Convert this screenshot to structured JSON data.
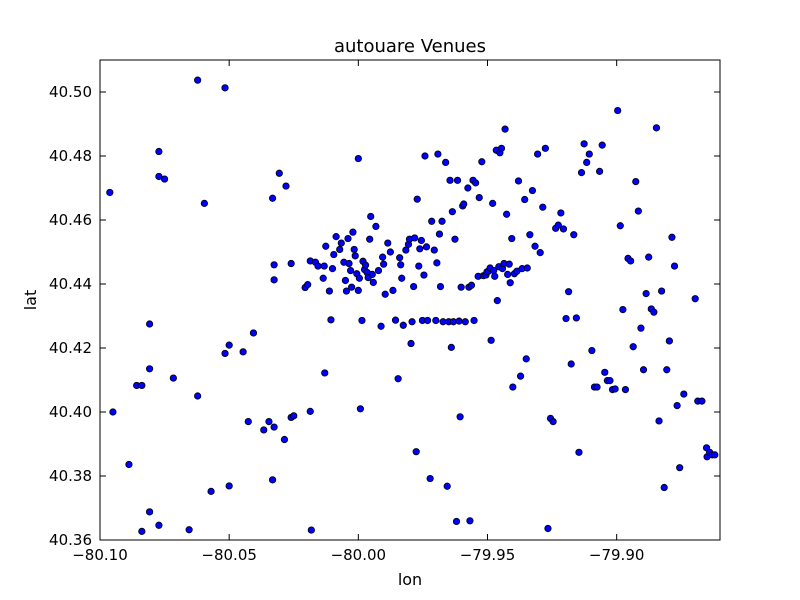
{
  "chart_data": {
    "type": "scatter",
    "title": "autouare Venues",
    "xlabel": "lon",
    "ylabel": "lat",
    "xlim": [
      -80.1,
      -79.86
    ],
    "ylim": [
      40.36,
      40.51
    ],
    "xticks": [
      -80.1,
      -80.05,
      -80.0,
      -79.95,
      -79.9
    ],
    "xtick_labels": [
      "−80.10",
      "−80.05",
      "−80.00",
      "−79.95",
      "−79.90"
    ],
    "yticks": [
      40.36,
      40.38,
      40.4,
      40.42,
      40.44,
      40.46,
      40.48,
      40.5
    ],
    "ytick_labels": [
      "40.36",
      "40.38",
      "40.40",
      "40.42",
      "40.44",
      "40.46",
      "40.48",
      "40.50"
    ],
    "grid": false,
    "marker_color": "#0000ff",
    "marker_edge": "#000000",
    "series": [
      {
        "points": [
          [
            -80.0962,
            40.4686
          ],
          [
            -80.095,
            40.4
          ],
          [
            -80.0888,
            40.3836
          ],
          [
            -80.0858,
            40.4083
          ],
          [
            -80.0838,
            40.4083
          ],
          [
            -80.0838,
            40.3627
          ],
          [
            -80.0808,
            40.4275
          ],
          [
            -80.0808,
            40.4135
          ],
          [
            -80.0808,
            40.3688
          ],
          [
            -80.0772,
            40.4814
          ],
          [
            -80.0772,
            40.4736
          ],
          [
            -80.075,
            40.4728
          ],
          [
            -80.0772,
            40.3646
          ],
          [
            -80.0716,
            40.4106
          ],
          [
            -80.0655,
            40.3632
          ],
          [
            -80.0622,
            40.5037
          ],
          [
            -80.0622,
            40.405
          ],
          [
            -80.0596,
            40.4652
          ],
          [
            -80.057,
            40.3752
          ],
          [
            -80.0516,
            40.5013
          ],
          [
            -80.0516,
            40.4183
          ],
          [
            -80.05,
            40.4209
          ],
          [
            -80.05,
            40.3769
          ],
          [
            -80.0446,
            40.4188
          ],
          [
            -80.0426,
            40.397
          ],
          [
            -80.0406,
            40.4247
          ],
          [
            -80.0366,
            40.3944
          ],
          [
            -80.0346,
            40.397
          ],
          [
            -80.0332,
            40.4668
          ],
          [
            -80.0332,
            40.3788
          ],
          [
            -80.0326,
            40.3953
          ],
          [
            -80.0326,
            40.446
          ],
          [
            -80.0326,
            40.4413
          ],
          [
            -80.0306,
            40.4746
          ],
          [
            -80.0286,
            40.3914
          ],
          [
            -80.028,
            40.4706
          ],
          [
            -80.026,
            40.4464
          ],
          [
            -80.026,
            40.3983
          ],
          [
            -80.025,
            40.3988
          ],
          [
            -80.0206,
            40.4389
          ],
          [
            -80.0196,
            40.4398
          ],
          [
            -80.0186,
            40.4472
          ],
          [
            -80.0186,
            40.4002
          ],
          [
            -80.0182,
            40.3631
          ],
          [
            -80.0166,
            40.4468
          ],
          [
            -80.0156,
            40.4456
          ],
          [
            -80.0136,
            40.4418
          ],
          [
            -80.0132,
            40.4456
          ],
          [
            -80.013,
            40.4122
          ],
          [
            -80.0126,
            40.4518
          ],
          [
            -80.0112,
            40.4378
          ],
          [
            -80.0106,
            40.4288
          ],
          [
            -80.01,
            40.4448
          ],
          [
            -80.0095,
            40.4492
          ],
          [
            -80.0086,
            40.4548
          ],
          [
            -80.0072,
            40.4508
          ],
          [
            -80.0066,
            40.4528
          ],
          [
            -80.0056,
            40.4468
          ],
          [
            -80.005,
            40.4411
          ],
          [
            -80.0046,
            40.4378
          ],
          [
            -80.004,
            40.4542
          ],
          [
            -80.0036,
            40.4464
          ],
          [
            -80.003,
            40.4442
          ],
          [
            -80.0026,
            40.439
          ],
          [
            -80.0021,
            40.4562
          ],
          [
            -80.0016,
            40.4508
          ],
          [
            -80.0012,
            40.4488
          ],
          [
            -80.0006,
            40.4432
          ],
          [
            -80.0,
            40.4792
          ],
          [
            -80.0,
            40.438
          ],
          [
            -79.9996,
            40.4418
          ],
          [
            -79.9992,
            40.401
          ],
          [
            -79.9986,
            40.4286
          ],
          [
            -79.9982,
            40.4471
          ],
          [
            -79.9976,
            40.4445
          ],
          [
            -79.9972,
            40.4459
          ],
          [
            -79.9966,
            40.4436
          ],
          [
            -79.9962,
            40.442
          ],
          [
            -79.9956,
            40.454
          ],
          [
            -79.9952,
            40.4611
          ],
          [
            -79.9946,
            40.443
          ],
          [
            -79.9942,
            40.4405
          ],
          [
            -79.9932,
            40.458
          ],
          [
            -79.9922,
            40.4442
          ],
          [
            -79.9912,
            40.4268
          ],
          [
            -79.9906,
            40.4484
          ],
          [
            -79.9902,
            40.4462
          ],
          [
            -79.9896,
            40.4368
          ],
          [
            -79.9886,
            40.4528
          ],
          [
            -79.9876,
            40.45
          ],
          [
            -79.9866,
            40.438
          ],
          [
            -79.9856,
            40.4287
          ],
          [
            -79.9846,
            40.4104
          ],
          [
            -79.984,
            40.4482
          ],
          [
            -79.9836,
            40.446
          ],
          [
            -79.9832,
            40.4418
          ],
          [
            -79.9826,
            40.4271
          ],
          [
            -79.9816,
            40.4506
          ],
          [
            -79.9806,
            40.4524
          ],
          [
            -79.9802,
            40.454
          ],
          [
            -79.9796,
            40.4214
          ],
          [
            -79.9792,
            40.4282
          ],
          [
            -79.9786,
            40.4392
          ],
          [
            -79.9782,
            40.4544
          ],
          [
            -79.9776,
            40.3876
          ],
          [
            -79.9772,
            40.4665
          ],
          [
            -79.9766,
            40.4456
          ],
          [
            -79.9762,
            40.451
          ],
          [
            -79.9756,
            40.4536
          ],
          [
            -79.9752,
            40.4286
          ],
          [
            -79.9746,
            40.4428
          ],
          [
            -79.9742,
            40.48
          ],
          [
            -79.9736,
            40.4516
          ],
          [
            -79.9732,
            40.4286
          ],
          [
            -79.9722,
            40.3792
          ],
          [
            -79.9716,
            40.4596
          ],
          [
            -79.9706,
            40.4506
          ],
          [
            -79.97,
            40.4286
          ],
          [
            -79.9696,
            40.4466
          ],
          [
            -79.9692,
            40.4806
          ],
          [
            -79.9686,
            40.4556
          ],
          [
            -79.9682,
            40.4392
          ],
          [
            -79.9676,
            40.4596
          ],
          [
            -79.9672,
            40.4282
          ],
          [
            -79.9662,
            40.478
          ],
          [
            -79.9656,
            40.3768
          ],
          [
            -79.965,
            40.4282
          ],
          [
            -79.9645,
            40.4724
          ],
          [
            -79.964,
            40.4202
          ],
          [
            -79.9636,
            40.4626
          ],
          [
            -79.9632,
            40.4282
          ],
          [
            -79.9626,
            40.454
          ],
          [
            -79.962,
            40.3658
          ],
          [
            -79.9616,
            40.4724
          ],
          [
            -79.961,
            40.4284
          ],
          [
            -79.9606,
            40.3985
          ],
          [
            -79.9602,
            40.439
          ],
          [
            -79.9596,
            40.4644
          ],
          [
            -79.9592,
            40.465
          ],
          [
            -79.9586,
            40.4282
          ],
          [
            -79.9576,
            40.47
          ],
          [
            -79.9572,
            40.439
          ],
          [
            -79.9568,
            40.366
          ],
          [
            -79.9562,
            40.4396
          ],
          [
            -79.9556,
            40.4724
          ],
          [
            -79.9552,
            40.4286
          ],
          [
            -79.9546,
            40.4716
          ],
          [
            -79.9536,
            40.4424
          ],
          [
            -79.9532,
            40.467
          ],
          [
            -79.9522,
            40.4782
          ],
          [
            -79.9516,
            40.4426
          ],
          [
            -79.9506,
            40.4428
          ],
          [
            -79.9502,
            40.4438
          ],
          [
            -79.9496,
            40.444
          ],
          [
            -79.949,
            40.445
          ],
          [
            -79.9486,
            40.4224
          ],
          [
            -79.948,
            40.4652
          ],
          [
            -79.9476,
            40.4442
          ],
          [
            -79.9472,
            40.4424
          ],
          [
            -79.9466,
            40.4818
          ],
          [
            -79.9462,
            40.4348
          ],
          [
            -79.9456,
            40.4454
          ],
          [
            -79.9452,
            40.481
          ],
          [
            -79.9446,
            40.4824
          ],
          [
            -79.9442,
            40.4448
          ],
          [
            -79.9436,
            40.4464
          ],
          [
            -79.9432,
            40.4884
          ],
          [
            -79.9426,
            40.4618
          ],
          [
            -79.9422,
            40.443
          ],
          [
            -79.9416,
            40.4462
          ],
          [
            -79.9412,
            40.4404
          ],
          [
            -79.9406,
            40.4542
          ],
          [
            -79.9402,
            40.4078
          ],
          [
            -79.9396,
            40.4432
          ],
          [
            -79.9386,
            40.444
          ],
          [
            -79.938,
            40.4722
          ],
          [
            -79.9372,
            40.4112
          ],
          [
            -79.9366,
            40.4448
          ],
          [
            -79.9356,
            40.4664
          ],
          [
            -79.935,
            40.4166
          ],
          [
            -79.9346,
            40.445
          ],
          [
            -79.9336,
            40.4554
          ],
          [
            -79.9326,
            40.4692
          ],
          [
            -79.9316,
            40.4518
          ],
          [
            -79.9306,
            40.4806
          ],
          [
            -79.9296,
            40.4498
          ],
          [
            -79.9286,
            40.464
          ],
          [
            -79.9276,
            40.4824
          ],
          [
            -79.9266,
            40.3636
          ],
          [
            -79.9256,
            40.398
          ],
          [
            -79.9246,
            40.397
          ],
          [
            -79.9236,
            40.4574
          ],
          [
            -79.9226,
            40.4584
          ],
          [
            -79.9216,
            40.4622
          ],
          [
            -79.9206,
            40.4572
          ],
          [
            -79.9196,
            40.4292
          ],
          [
            -79.9186,
            40.4376
          ],
          [
            -79.9176,
            40.415
          ],
          [
            -79.9166,
            40.4554
          ],
          [
            -79.9156,
            40.4294
          ],
          [
            -79.9146,
            40.3874
          ],
          [
            -79.9136,
            40.4748
          ],
          [
            -79.9126,
            40.4838
          ],
          [
            -79.9116,
            40.478
          ],
          [
            -79.9106,
            40.4806
          ],
          [
            -79.9096,
            40.4192
          ],
          [
            -79.9086,
            40.4078
          ],
          [
            -79.9076,
            40.4078
          ],
          [
            -79.9066,
            40.4752
          ],
          [
            -79.9056,
            40.4834
          ],
          [
            -79.9046,
            40.4124
          ],
          [
            -79.9036,
            40.4098
          ],
          [
            -79.9026,
            40.4098
          ],
          [
            -79.9016,
            40.407
          ],
          [
            -79.9006,
            40.4072
          ],
          [
            -79.8996,
            40.4942
          ],
          [
            -79.8986,
            40.4582
          ],
          [
            -79.8976,
            40.432
          ],
          [
            -79.8966,
            40.407
          ],
          [
            -79.8956,
            40.448
          ],
          [
            -79.8946,
            40.4472
          ],
          [
            -79.8936,
            40.4204
          ],
          [
            -79.8926,
            40.472
          ],
          [
            -79.8916,
            40.4628
          ],
          [
            -79.8906,
            40.4262
          ],
          [
            -79.8896,
            40.4132
          ],
          [
            -79.8886,
            40.437
          ],
          [
            -79.8876,
            40.4484
          ],
          [
            -79.8866,
            40.4322
          ],
          [
            -79.8856,
            40.4312
          ],
          [
            -79.8846,
            40.4888
          ],
          [
            -79.8836,
            40.3972
          ],
          [
            -79.8826,
            40.4378
          ],
          [
            -79.8816,
            40.3764
          ],
          [
            -79.8806,
            40.4132
          ],
          [
            -79.8796,
            40.4222
          ],
          [
            -79.8786,
            40.4546
          ],
          [
            -79.8776,
            40.4456
          ],
          [
            -79.8766,
            40.402
          ],
          [
            -79.8756,
            40.3826
          ],
          [
            -79.874,
            40.4056
          ],
          [
            -79.8696,
            40.4354
          ],
          [
            -79.8686,
            40.4034
          ],
          [
            -79.867,
            40.4034
          ],
          [
            -79.8652,
            40.3888
          ],
          [
            -79.865,
            40.386
          ],
          [
            -79.864,
            40.3874
          ],
          [
            -79.863,
            40.3866
          ],
          [
            -79.862,
            40.3866
          ]
        ]
      }
    ]
  }
}
